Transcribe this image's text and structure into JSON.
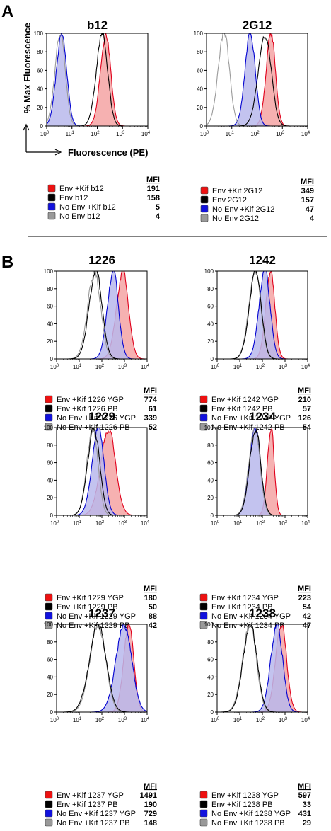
{
  "figure": {
    "panel_a_letter": "A",
    "panel_b_letter": "B",
    "y_axis_title": "% Max Fluorescence",
    "x_axis_title": "Fluorescence (PE)",
    "mfi_header": "MFI"
  },
  "colors": {
    "red_fill": "#f4a3a3",
    "red_line": "#e0001b",
    "blue_fill": "#b8b8ec",
    "blue_line": "#0000d0",
    "black_line": "#000000",
    "gray_line": "#9a9a9a",
    "red_swatch": "#ee1111",
    "black_swatch": "#000000",
    "blue_swatch": "#1111dd",
    "gray_swatch": "#999999"
  },
  "chart_data": [
    {
      "type": "area",
      "title": "b12",
      "xscale": "log",
      "xlim": [
        1,
        10000
      ],
      "ylim": [
        0,
        100
      ],
      "xticks": [
        "10^0",
        "10^1",
        "10^2",
        "10^3",
        "10^4"
      ],
      "yticks": [
        0,
        20,
        40,
        60,
        80,
        100
      ],
      "series": [
        {
          "name": "Env +Kif b12",
          "color": "red",
          "filled": true,
          "mfi": 191,
          "mode_x": 220,
          "width": 0.2
        },
        {
          "name": "Env b12",
          "color": "black",
          "filled": false,
          "mfi": 158,
          "mode_x": 160,
          "width": 0.22
        },
        {
          "name": "No Env +Kif b12",
          "color": "blue",
          "filled": true,
          "mfi": 5,
          "mode_x": 4,
          "width": 0.2
        },
        {
          "name": "No Env b12",
          "color": "gray",
          "filled": false,
          "mfi": 4,
          "mode_x": 3.5,
          "width": 0.2
        }
      ]
    },
    {
      "type": "area",
      "title": "2G12",
      "xscale": "log",
      "xlim": [
        1,
        10000
      ],
      "ylim": [
        0,
        100
      ],
      "xticks": [
        "10^0",
        "10^1",
        "10^2",
        "10^3",
        "10^4"
      ],
      "yticks": [
        0,
        20,
        40,
        60,
        80,
        100
      ],
      "series": [
        {
          "name": "Env +Kif 2G12",
          "color": "red",
          "filled": true,
          "mfi": 349,
          "mode_x": 360,
          "width": 0.18
        },
        {
          "name": "Env 2G12",
          "color": "black",
          "filled": false,
          "mfi": 157,
          "mode_x": 210,
          "width": 0.25
        },
        {
          "name": "No Env +Kif 2G12",
          "color": "blue",
          "filled": true,
          "mfi": 47,
          "mode_x": 55,
          "width": 0.2
        },
        {
          "name": "No Env 2G12",
          "color": "gray",
          "filled": false,
          "mfi": 4,
          "mode_x": 5,
          "width": 0.22
        }
      ]
    },
    {
      "type": "area",
      "title": "1226",
      "xscale": "log",
      "xlim": [
        1,
        10000
      ],
      "ylim": [
        0,
        100
      ],
      "xticks": [
        "10^0",
        "10^1",
        "10^2",
        "10^3",
        "10^4"
      ],
      "yticks": [
        0,
        20,
        40,
        60,
        80,
        100
      ],
      "series": [
        {
          "name": "Env +Kif 1226 YGP",
          "color": "red",
          "filled": true,
          "mfi": 774,
          "mode_x": 850,
          "width": 0.26
        },
        {
          "name": "Env +Kif 1226 PB",
          "color": "black",
          "filled": false,
          "mfi": 61,
          "mode_x": 55,
          "width": 0.28
        },
        {
          "name": "No Env +Kif 1226 YGP",
          "color": "blue",
          "filled": true,
          "mfi": 339,
          "mode_x": 320,
          "width": 0.24
        },
        {
          "name": "No Env +Kif 1226 PB",
          "color": "gray",
          "filled": false,
          "mfi": 52,
          "mode_x": 48,
          "width": 0.28
        }
      ]
    },
    {
      "type": "area",
      "title": "1242",
      "xscale": "log",
      "xlim": [
        1,
        10000
      ],
      "ylim": [
        0,
        100
      ],
      "xticks": [
        "10^0",
        "10^1",
        "10^2",
        "10^3",
        "10^4"
      ],
      "yticks": [
        0,
        20,
        40,
        60,
        80,
        100
      ],
      "series": [
        {
          "name": "Env +Kif 1242 YGP",
          "color": "red",
          "filled": true,
          "mfi": 210,
          "mode_x": 230,
          "width": 0.2
        },
        {
          "name": "Env +Kif 1242 PB",
          "color": "black",
          "filled": false,
          "mfi": 57,
          "mode_x": 50,
          "width": 0.26
        },
        {
          "name": "No Env +Kif 1242 YGP",
          "color": "blue",
          "filled": true,
          "mfi": 126,
          "mode_x": 130,
          "width": 0.24
        },
        {
          "name": "No Env +Kif 1242 PB",
          "color": "gray",
          "filled": false,
          "mfi": 54,
          "mode_x": 48,
          "width": 0.26
        }
      ]
    },
    {
      "type": "area",
      "title": "1229",
      "xscale": "log",
      "xlim": [
        1,
        10000
      ],
      "ylim": [
        0,
        100
      ],
      "xticks": [
        "10^0",
        "10^1",
        "10^2",
        "10^3",
        "10^4"
      ],
      "yticks": [
        0,
        20,
        40,
        60,
        80,
        100
      ],
      "series": [
        {
          "name": "Env +Kif 1229 YGP",
          "color": "red",
          "filled": true,
          "mfi": 180,
          "mode_x": 200,
          "width": 0.32
        },
        {
          "name": "Env +Kif 1229 PB",
          "color": "black",
          "filled": false,
          "mfi": 50,
          "mode_x": 45,
          "width": 0.26
        },
        {
          "name": "No Env +Kif 1229 YGP",
          "color": "blue",
          "filled": true,
          "mfi": 88,
          "mode_x": 70,
          "width": 0.26
        },
        {
          "name": "No Env +Kif 1229 PB",
          "color": "gray",
          "filled": false,
          "mfi": 42,
          "mode_x": 40,
          "width": 0.24
        }
      ]
    },
    {
      "type": "area",
      "title": "1234",
      "xscale": "log",
      "xlim": [
        1,
        10000
      ],
      "ylim": [
        0,
        100
      ],
      "xticks": [
        "10^0",
        "10^1",
        "10^2",
        "10^3",
        "10^4"
      ],
      "yticks": [
        0,
        20,
        40,
        60,
        80,
        100
      ],
      "series": [
        {
          "name": "Env +Kif 1234 YGP",
          "color": "red",
          "filled": true,
          "mfi": 223,
          "mode_x": 240,
          "width": 0.15
        },
        {
          "name": "Env +Kif 1234 PB",
          "color": "black",
          "filled": false,
          "mfi": 54,
          "mode_x": 50,
          "width": 0.24
        },
        {
          "name": "No Env +Kif 1234 YGP",
          "color": "blue",
          "filled": true,
          "mfi": 42,
          "mode_x": 48,
          "width": 0.24
        },
        {
          "name": "No Env +Kif 1234 PB",
          "color": "gray",
          "filled": false,
          "mfi": 47,
          "mode_x": 46,
          "width": 0.24
        }
      ]
    },
    {
      "type": "area",
      "title": "1237",
      "xscale": "log",
      "xlim": [
        1,
        10000
      ],
      "ylim": [
        0,
        100
      ],
      "xticks": [
        "10^0",
        "10^1",
        "10^2",
        "10^3",
        "10^4"
      ],
      "yticks": [
        0,
        20,
        40,
        60,
        80,
        100
      ],
      "series": [
        {
          "name": "Env +Kif 1237 YGP",
          "color": "red",
          "filled": true,
          "mfi": 1491,
          "mode_x": 1600,
          "width": 0.22
        },
        {
          "name": "Env +Kif 1237 PB",
          "color": "black",
          "filled": false,
          "mfi": 190,
          "mode_x": 70,
          "width": 0.36
        },
        {
          "name": "No Env +Kif 1237 YGP",
          "color": "blue",
          "filled": true,
          "mfi": 729,
          "mode_x": 1000,
          "width": 0.34
        },
        {
          "name": "No Env +Kif 1237 PB",
          "color": "gray",
          "filled": false,
          "mfi": 148,
          "mode_x": 70,
          "width": 0.34
        }
      ]
    },
    {
      "type": "area",
      "title": "1238",
      "xscale": "log",
      "xlim": [
        1,
        10000
      ],
      "ylim": [
        0,
        100
      ],
      "xticks": [
        "10^0",
        "10^1",
        "10^2",
        "10^3",
        "10^4"
      ],
      "yticks": [
        0,
        20,
        40,
        60,
        80,
        100
      ],
      "series": [
        {
          "name": "Env +Kif 1238 YGP",
          "color": "red",
          "filled": true,
          "mfi": 597,
          "mode_x": 700,
          "width": 0.24
        },
        {
          "name": "Env +Kif 1238 PB",
          "color": "black",
          "filled": false,
          "mfi": 33,
          "mode_x": 30,
          "width": 0.3
        },
        {
          "name": "No Env +Kif 1238 YGP",
          "color": "blue",
          "filled": true,
          "mfi": 431,
          "mode_x": 450,
          "width": 0.26
        },
        {
          "name": "No Env +Kif 1238 PB",
          "color": "gray",
          "filled": false,
          "mfi": 29,
          "mode_x": 28,
          "width": 0.3
        }
      ]
    }
  ]
}
